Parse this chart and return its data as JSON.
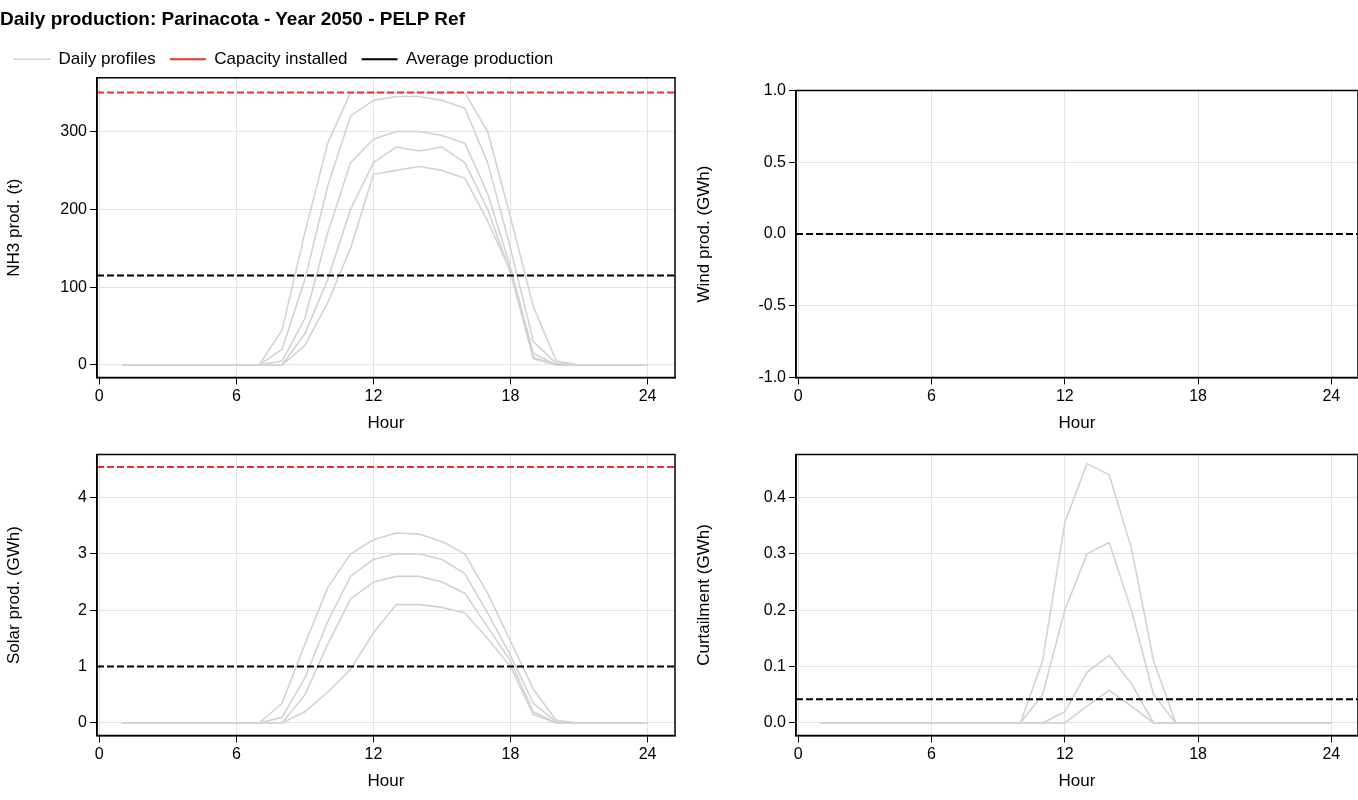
{
  "chart_data": [
    {
      "type": "line",
      "title": "Daily production: Parinacota - Year 2050 - PELP Ref",
      "xlabel": "Hour",
      "ylabel": "NH3 prod. (t)",
      "x": [
        1,
        2,
        3,
        4,
        5,
        6,
        7,
        8,
        9,
        10,
        11,
        12,
        13,
        14,
        15,
        16,
        17,
        18,
        19,
        20,
        21,
        22,
        23,
        24
      ],
      "series": [
        {
          "name": "Daily profiles",
          "color": "#d3d3d3",
          "values": [
            0,
            0,
            0,
            0,
            0,
            0,
            0,
            45,
            170,
            285,
            350,
            350,
            350,
            350,
            350,
            350,
            300,
            190,
            75,
            5,
            0,
            0,
            0,
            0
          ]
        },
        {
          "color": "#d3d3d3",
          "values": [
            0,
            0,
            0,
            0,
            0,
            0,
            0,
            20,
            110,
            230,
            320,
            340,
            345,
            345,
            340,
            330,
            260,
            150,
            30,
            2,
            0,
            0,
            0,
            0
          ]
        },
        {
          "color": "#d3d3d3",
          "values": [
            0,
            0,
            0,
            0,
            0,
            0,
            0,
            5,
            60,
            170,
            260,
            290,
            300,
            300,
            295,
            285,
            220,
            125,
            15,
            0,
            0,
            0,
            0,
            0
          ]
        },
        {
          "color": "#d3d3d3",
          "values": [
            0,
            0,
            0,
            0,
            0,
            0,
            0,
            0,
            40,
            110,
            200,
            260,
            280,
            275,
            280,
            260,
            200,
            118,
            10,
            0,
            0,
            0,
            0,
            0
          ]
        },
        {
          "color": "#d3d3d3",
          "values": [
            0,
            0,
            0,
            0,
            0,
            0,
            0,
            0,
            25,
            80,
            150,
            245,
            250,
            255,
            250,
            240,
            185,
            120,
            8,
            0,
            0,
            0,
            0,
            0
          ]
        }
      ],
      "ref_lines": [
        {
          "axis": "y",
          "value": 350,
          "label": "Capacity installed",
          "color": "#e8352a",
          "line_style": "dashed"
        },
        {
          "axis": "y",
          "value": 115,
          "label": "Average production",
          "color": "#000000",
          "line_style": "dashed"
        }
      ],
      "xlim": [
        -0.1,
        25.2
      ],
      "xticks": [
        0,
        6,
        12,
        18,
        24
      ],
      "ylim": [
        -16,
        369
      ],
      "yticks": [
        0,
        100,
        200,
        300
      ],
      "grid": true,
      "legend": "top left",
      "marker": "none"
    },
    {
      "type": "line",
      "xlabel": "Hour",
      "ylabel": "Wind prod. (GWh)",
      "x": [
        1,
        2,
        3,
        4,
        5,
        6,
        7,
        8,
        9,
        10,
        11,
        12,
        13,
        14,
        15,
        16,
        17,
        18,
        19,
        20,
        21,
        22,
        23,
        24
      ],
      "series": [
        {
          "color": "#d3d3d3",
          "values": [
            0,
            0,
            0,
            0,
            0,
            0,
            0,
            0,
            0,
            0,
            0,
            0,
            0,
            0,
            0,
            0,
            0,
            0,
            0,
            0,
            0,
            0,
            0,
            0
          ]
        }
      ],
      "ref_lines": [
        {
          "axis": "y",
          "value": 0,
          "color": "#000000",
          "line_style": "dashed"
        }
      ],
      "xlim": [
        -0.1,
        25.2
      ],
      "xticks": [
        0,
        6,
        12,
        18,
        24
      ],
      "ylim": [
        -1,
        1
      ],
      "yticks": [
        {
          "value": -1,
          "label": "-1.0"
        },
        {
          "value": -0.5,
          "label": "-0.5"
        },
        {
          "value": 0,
          "label": "0.0"
        },
        0.5,
        {
          "value": 1,
          "label": "1.0"
        }
      ],
      "grid": true,
      "marker": "none"
    },
    {
      "type": "line",
      "xlabel": "Hour",
      "ylabel": "Solar prod. (GWh)",
      "x": [
        1,
        2,
        3,
        4,
        5,
        6,
        7,
        8,
        9,
        10,
        11,
        12,
        13,
        14,
        15,
        16,
        17,
        18,
        19,
        20,
        21,
        22,
        23,
        24
      ],
      "series": [
        {
          "color": "#d3d3d3",
          "values": [
            0,
            0,
            0,
            0,
            0,
            0,
            0,
            0.35,
            1.4,
            2.4,
            3.0,
            3.25,
            3.37,
            3.35,
            3.22,
            3.0,
            2.3,
            1.45,
            0.6,
            0.05,
            0,
            0,
            0,
            0
          ]
        },
        {
          "color": "#d3d3d3",
          "values": [
            0,
            0,
            0,
            0,
            0,
            0,
            0,
            0.1,
            0.8,
            1.8,
            2.6,
            2.9,
            3.0,
            3.0,
            2.9,
            2.65,
            1.95,
            1.2,
            0.35,
            0.02,
            0,
            0,
            0,
            0
          ]
        },
        {
          "color": "#d3d3d3",
          "values": [
            0,
            0,
            0,
            0,
            0,
            0,
            0,
            0,
            0.5,
            1.4,
            2.2,
            2.5,
            2.6,
            2.6,
            2.5,
            2.3,
            1.7,
            1.1,
            0.2,
            0,
            0,
            0,
            0,
            0
          ]
        },
        {
          "color": "#d3d3d3",
          "values": [
            0,
            0,
            0,
            0,
            0,
            0,
            0,
            0,
            0.2,
            0.55,
            0.95,
            1.6,
            2.1,
            2.1,
            2.05,
            1.95,
            1.5,
            1.0,
            0.15,
            0,
            0,
            0,
            0,
            0
          ]
        }
      ],
      "ref_lines": [
        {
          "axis": "y",
          "value": 4.54,
          "color": "#e8352a",
          "line_style": "dashed"
        },
        {
          "axis": "y",
          "value": 1.0,
          "color": "#000000",
          "line_style": "dashed"
        }
      ],
      "xlim": [
        -0.1,
        25.2
      ],
      "xticks": [
        0,
        6,
        12,
        18,
        24
      ],
      "ylim": [
        -0.22,
        4.76
      ],
      "yticks": [
        0,
        1,
        2,
        3,
        4
      ],
      "grid": true,
      "marker": "none"
    },
    {
      "type": "line",
      "xlabel": "Hour",
      "ylabel": "Curtailment (GWh)",
      "x": [
        1,
        2,
        3,
        4,
        5,
        6,
        7,
        8,
        9,
        10,
        11,
        12,
        13,
        14,
        15,
        16,
        17,
        18,
        19,
        20,
        21,
        22,
        23,
        24
      ],
      "series": [
        {
          "color": "#d3d3d3",
          "values": [
            0,
            0,
            0,
            0,
            0,
            0,
            0,
            0,
            0,
            0,
            0.11,
            0.355,
            0.46,
            0.44,
            0.31,
            0.11,
            0,
            0,
            0,
            0,
            0,
            0,
            0,
            0
          ]
        },
        {
          "color": "#d3d3d3",
          "values": [
            0,
            0,
            0,
            0,
            0,
            0,
            0,
            0,
            0,
            0,
            0.05,
            0.2,
            0.3,
            0.32,
            0.2,
            0.05,
            0,
            0,
            0,
            0,
            0,
            0,
            0,
            0
          ]
        },
        {
          "color": "#d3d3d3",
          "values": [
            0,
            0,
            0,
            0,
            0,
            0,
            0,
            0,
            0,
            0,
            0,
            0.02,
            0.09,
            0.12,
            0.07,
            0,
            0,
            0,
            0,
            0,
            0,
            0,
            0,
            0
          ]
        },
        {
          "color": "#d3d3d3",
          "values": [
            0,
            0,
            0,
            0,
            0,
            0,
            0,
            0,
            0,
            0,
            0,
            0,
            0.03,
            0.058,
            0.03,
            0,
            0,
            0,
            0,
            0,
            0,
            0,
            0,
            0
          ]
        }
      ],
      "ref_lines": [
        {
          "axis": "y",
          "value": 0.042,
          "color": "#000000",
          "line_style": "dashed"
        }
      ],
      "xlim": [
        -0.1,
        25.2
      ],
      "xticks": [
        0,
        6,
        12,
        18,
        24
      ],
      "ylim": [
        -0.022,
        0.476
      ],
      "yticks": [
        {
          "value": 0,
          "label": "0.0"
        },
        0.1,
        0.2,
        0.3,
        0.4
      ],
      "grid": true,
      "marker": "none"
    }
  ]
}
